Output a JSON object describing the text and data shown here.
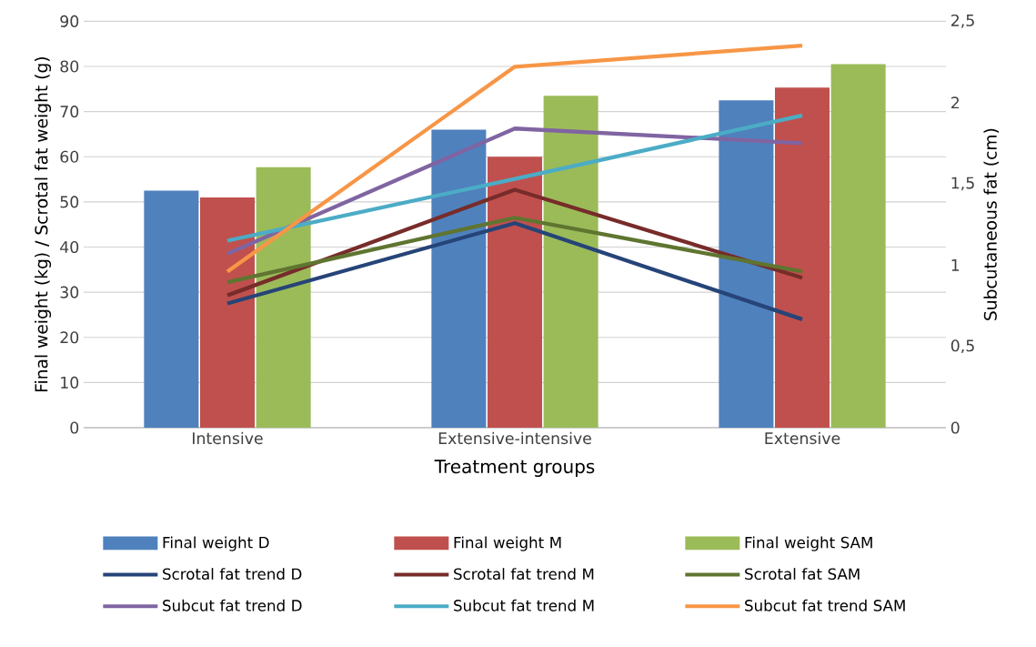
{
  "chart_data": {
    "type": "bar",
    "categories": [
      "Intensive",
      "Extensive-intensive",
      "Extensive"
    ],
    "xlabel": "Treatment groups",
    "ylabel": "Final weight (kg) / Scrotal fat weight (g)",
    "y2label": "Subcutaneous fat (cm)",
    "ylim": [
      0,
      90
    ],
    "yticks": [
      0,
      10,
      20,
      30,
      40,
      50,
      60,
      70,
      80,
      90
    ],
    "y2lim": [
      0,
      2.5
    ],
    "y2ticks": [
      {
        "value": 0,
        "label": "0"
      },
      {
        "value": 0.5,
        "label": "0,5"
      },
      {
        "value": 1,
        "label": "1"
      },
      {
        "value": 1.5,
        "label": "1,5"
      },
      {
        "value": 2,
        "label": "2"
      },
      {
        "value": 2.5,
        "label": "2,5"
      }
    ],
    "grid": "y",
    "legend": "bottom",
    "series": [
      {
        "name": "Final weight D",
        "color": "#4f81bd",
        "values": [
          52.5,
          66,
          72.5
        ]
      },
      {
        "name": "Final weight M",
        "color": "#c0504d",
        "values": [
          51,
          60,
          75.3
        ]
      },
      {
        "name": "Final weight SAM",
        "color": "#9bbb59",
        "values": [
          57.7,
          73.5,
          80.5
        ]
      },
      {
        "name": "Scrotal fat trend D",
        "type": "line",
        "color": "#264478",
        "values": [
          27.5,
          45.3,
          24
        ]
      },
      {
        "name": "Scrotal fat trend M",
        "type": "line",
        "color": "#772c2a",
        "values": [
          29.3,
          52.7,
          33.2
        ]
      },
      {
        "name": "Scrotal fat SAM",
        "type": "line",
        "color": "#5f7530",
        "values": [
          32.2,
          46.5,
          34.6
        ]
      },
      {
        "name": "Subcut fat trend D",
        "type": "line",
        "axis": "y2",
        "color": "#8064a2",
        "values": [
          1.07,
          1.84,
          1.75
        ]
      },
      {
        "name": "Subcut fat trend M",
        "type": "line",
        "axis": "y2",
        "color": "#4bacc6",
        "values": [
          1.15,
          1.53,
          1.92
        ]
      },
      {
        "name": "Subcut fat trend SAM",
        "type": "line",
        "axis": "y2",
        "color": "#f79646",
        "values": [
          0.96,
          2.22,
          2.35
        ]
      }
    ]
  }
}
